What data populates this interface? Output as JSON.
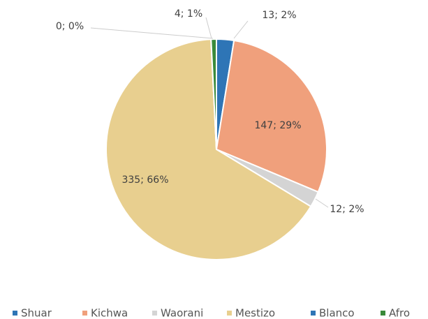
{
  "chart_data": {
    "type": "pie",
    "categories": [
      "Shuar",
      "Kichwa",
      "Waorani",
      "Mestizo",
      "Blanco",
      "Afro"
    ],
    "values": [
      13,
      147,
      12,
      335,
      0,
      4
    ],
    "value_labels": [
      "13; 2%",
      "147; 29%",
      "12; 2%",
      "335; 66%",
      "0; 0%",
      "4; 1%"
    ],
    "colors": [
      "#2e75b6",
      "#f0a07c",
      "#d4d4d4",
      "#e8cf8f",
      "#2e75b6",
      "#3a8a3a"
    ],
    "legend": "bottom"
  }
}
